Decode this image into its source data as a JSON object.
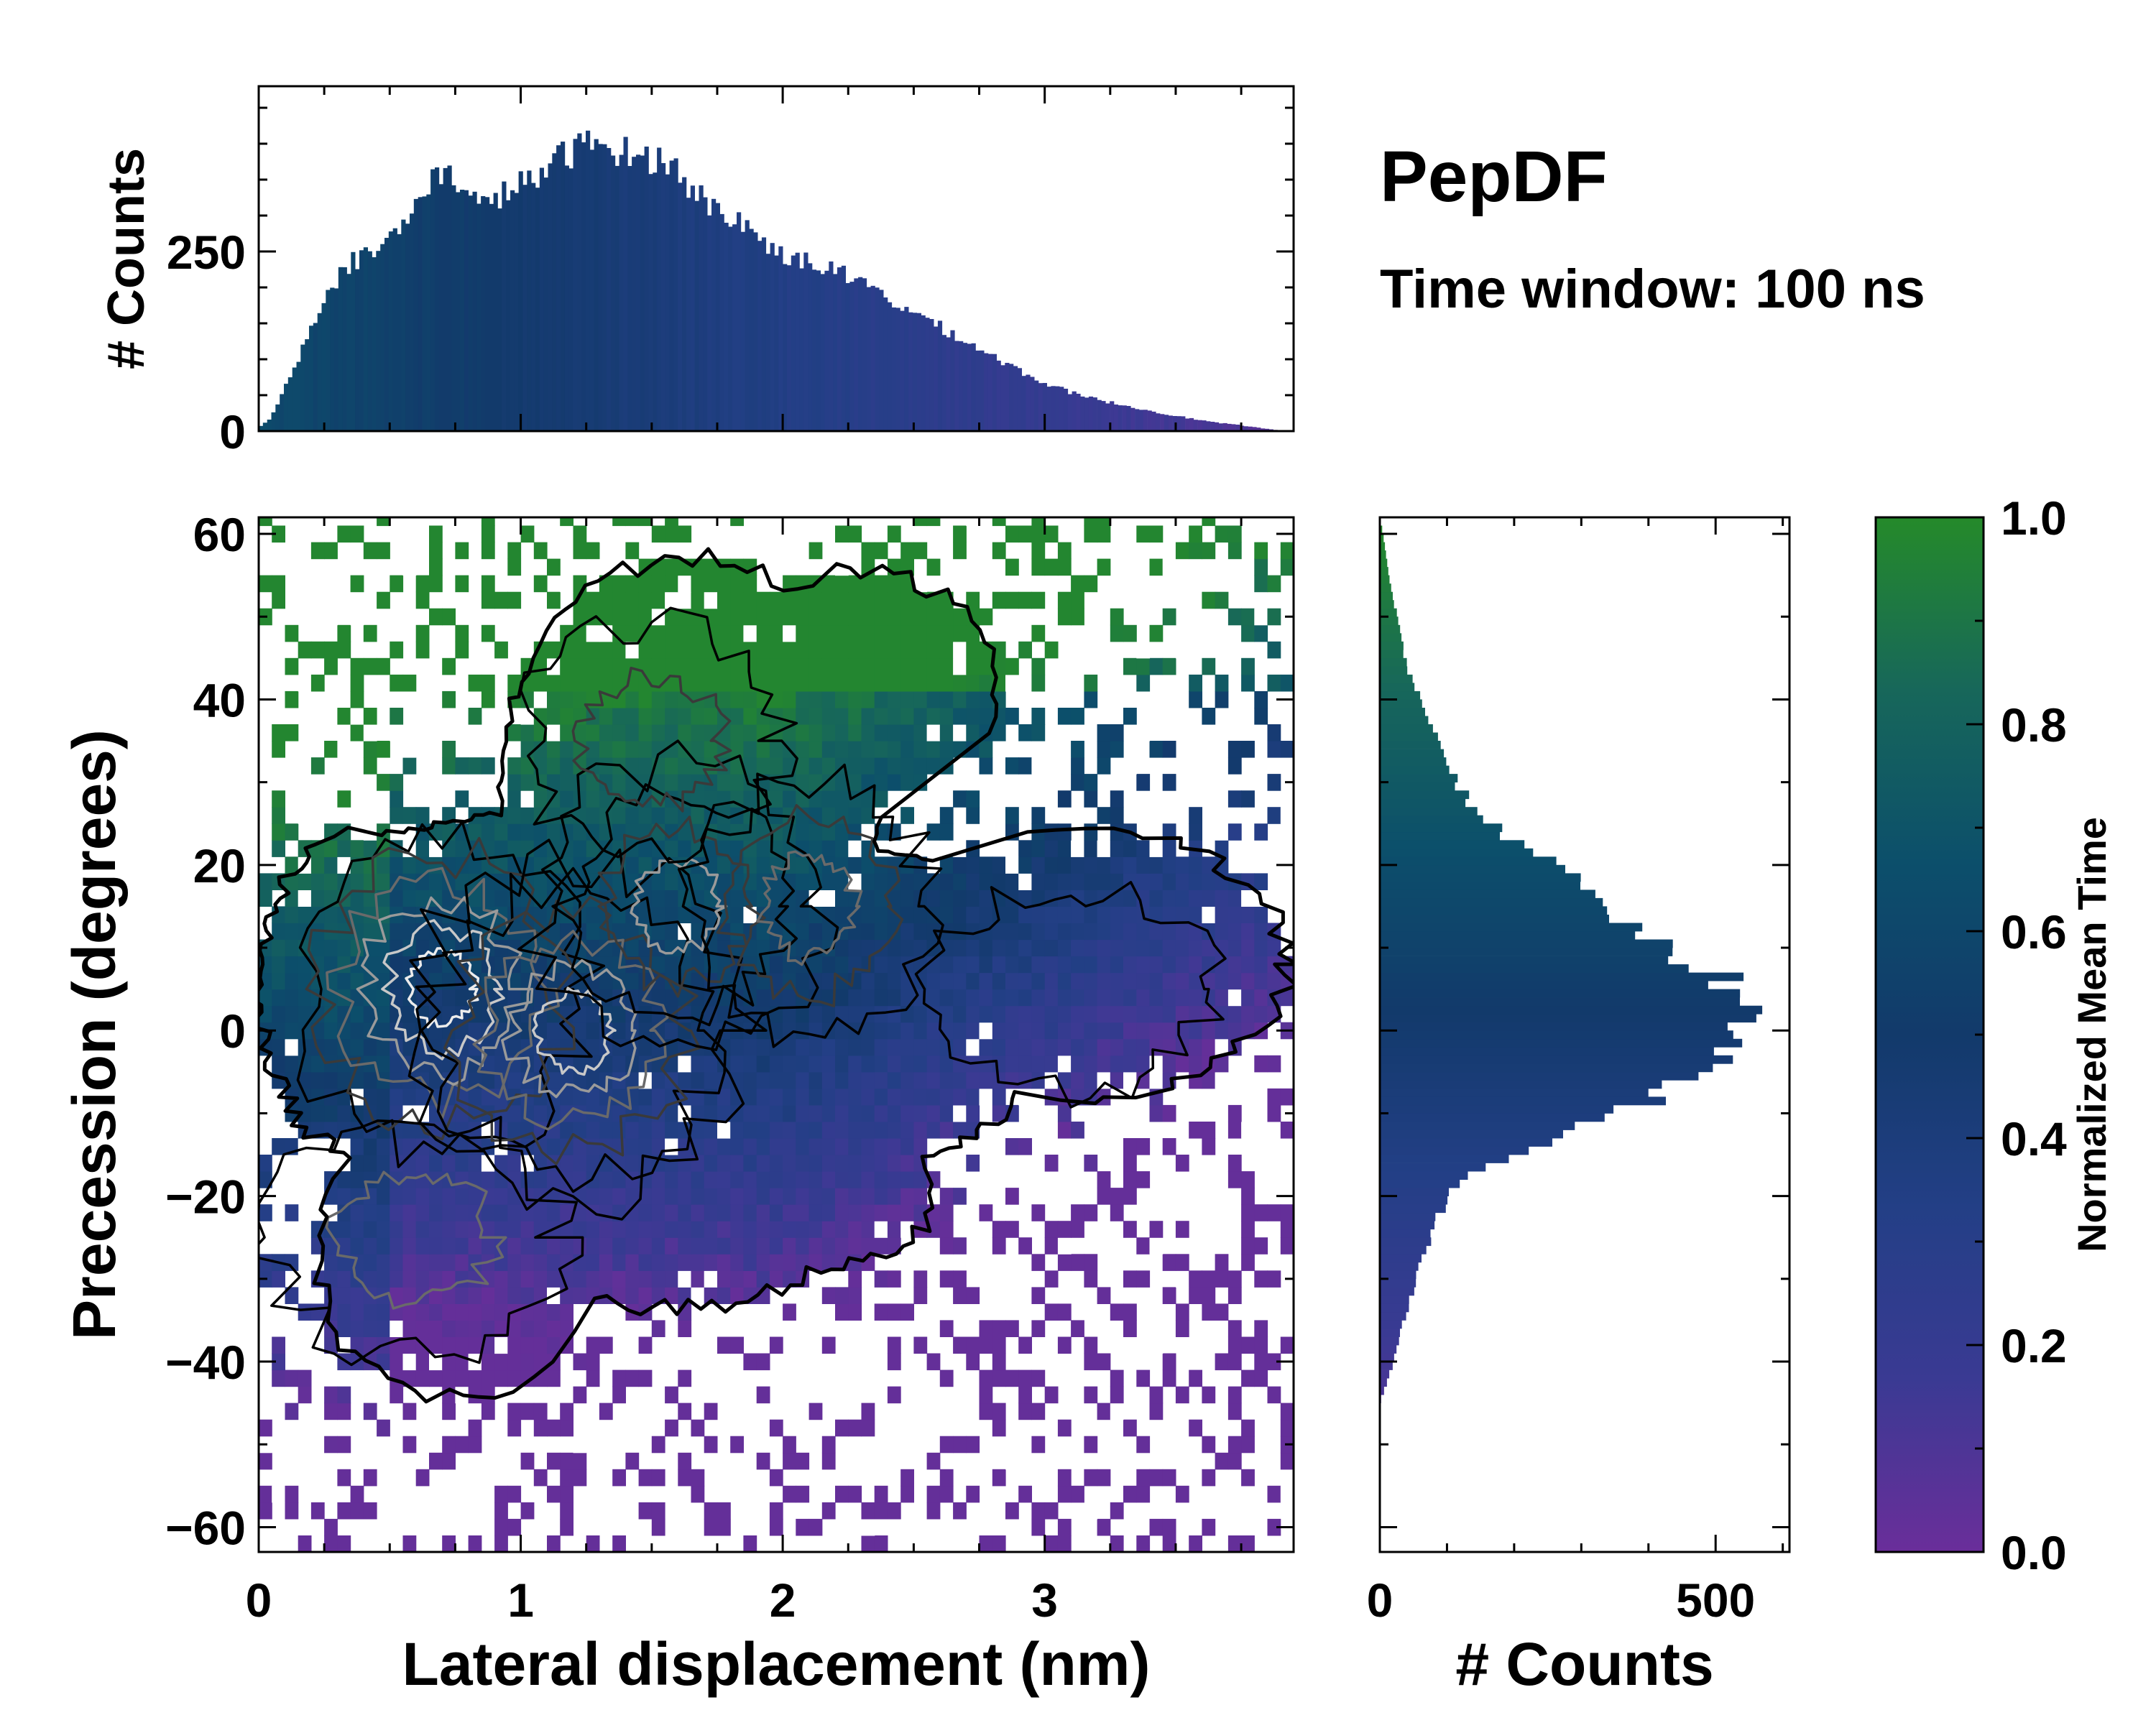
{
  "title": "PepDF",
  "subtitle": "Time window: 100 ns",
  "colors": {
    "colormap": [
      "#6a2e9a",
      "#3a3a93",
      "#233f86",
      "#123a6b",
      "#0c4f6b",
      "#17675a",
      "#258a2a"
    ],
    "contour_levels": [
      "#000000",
      "#3a3a3a",
      "#6a6a6a",
      "#9a9a9a",
      "#c8c8c8",
      "#ececec"
    ],
    "empty_cell": "#ffffff"
  },
  "chart_data": [
    {
      "id": "joint",
      "type": "heatmap",
      "description_style": "2D histogram colored by normalized mean time with density contours",
      "xlabel": "Lateral displacement (nm)",
      "ylabel": "Precession (degrees)",
      "xlim": [
        0,
        3.95
      ],
      "ylim": [
        -63,
        62
      ],
      "xticks": [
        0,
        1,
        2,
        3
      ],
      "xtick_labels": [
        "0",
        "1",
        "2",
        "3"
      ],
      "yticks": [
        -60,
        -40,
        -20,
        0,
        20,
        40,
        60
      ],
      "ytick_labels": [
        "−60",
        "−40",
        "−20",
        "0",
        "20",
        "40",
        "60"
      ],
      "density_peaks": [
        {
          "x": 0.7,
          "y": 5,
          "amp": 1.0,
          "sx": 0.35,
          "sy": 12
        },
        {
          "x": 1.2,
          "y": 0,
          "amp": 0.95,
          "sx": 0.4,
          "sy": 13
        },
        {
          "x": 1.6,
          "y": 15,
          "amp": 0.6,
          "sx": 0.35,
          "sy": 11
        },
        {
          "x": 2.1,
          "y": 15,
          "amp": 0.55,
          "sx": 0.3,
          "sy": 10
        },
        {
          "x": 1.5,
          "y": 35,
          "amp": 0.3,
          "sx": 0.35,
          "sy": 10
        },
        {
          "x": 0.6,
          "y": -25,
          "amp": 0.4,
          "sx": 0.4,
          "sy": 10
        },
        {
          "x": 3.1,
          "y": 5,
          "amp": 0.2,
          "sx": 0.45,
          "sy": 10
        }
      ]
    },
    {
      "id": "x_marginal",
      "type": "bar",
      "ylabel": "# Counts",
      "xlim": [
        0,
        3.95
      ],
      "ylim": [
        0,
        480
      ],
      "yticks": [
        0,
        250
      ],
      "ytick_labels": [
        "0",
        "250"
      ],
      "profile": [
        {
          "x": 0.0,
          "count": 5
        },
        {
          "x": 0.05,
          "count": 20
        },
        {
          "x": 0.15,
          "count": 100
        },
        {
          "x": 0.25,
          "count": 190
        },
        {
          "x": 0.35,
          "count": 235
        },
        {
          "x": 0.45,
          "count": 250
        },
        {
          "x": 0.55,
          "count": 285
        },
        {
          "x": 0.65,
          "count": 350
        },
        {
          "x": 0.75,
          "count": 355
        },
        {
          "x": 0.85,
          "count": 310
        },
        {
          "x": 0.95,
          "count": 335
        },
        {
          "x": 1.05,
          "count": 350
        },
        {
          "x": 1.15,
          "count": 380
        },
        {
          "x": 1.25,
          "count": 400
        },
        {
          "x": 1.35,
          "count": 395
        },
        {
          "x": 1.45,
          "count": 380
        },
        {
          "x": 1.55,
          "count": 380
        },
        {
          "x": 1.65,
          "count": 340
        },
        {
          "x": 1.75,
          "count": 305
        },
        {
          "x": 1.85,
          "count": 290
        },
        {
          "x": 1.95,
          "count": 255
        },
        {
          "x": 2.05,
          "count": 240
        },
        {
          "x": 2.15,
          "count": 230
        },
        {
          "x": 2.25,
          "count": 215
        },
        {
          "x": 2.35,
          "count": 195
        },
        {
          "x": 2.45,
          "count": 175
        },
        {
          "x": 2.55,
          "count": 155
        },
        {
          "x": 2.65,
          "count": 135
        },
        {
          "x": 2.75,
          "count": 115
        },
        {
          "x": 2.85,
          "count": 95
        },
        {
          "x": 2.95,
          "count": 75
        },
        {
          "x": 3.05,
          "count": 60
        },
        {
          "x": 3.15,
          "count": 48
        },
        {
          "x": 3.25,
          "count": 40
        },
        {
          "x": 3.35,
          "count": 32
        },
        {
          "x": 3.45,
          "count": 25
        },
        {
          "x": 3.55,
          "count": 18
        },
        {
          "x": 3.65,
          "count": 12
        },
        {
          "x": 3.75,
          "count": 8
        },
        {
          "x": 3.85,
          "count": 3
        },
        {
          "x": 3.92,
          "count": 0
        }
      ]
    },
    {
      "id": "y_marginal",
      "type": "bar",
      "orientation": "horizontal",
      "xlabel": "# Counts",
      "xlim": [
        0,
        610
      ],
      "xticks": [
        0,
        500
      ],
      "xtick_labels": [
        "0",
        "500"
      ],
      "ylim": [
        -63,
        62
      ],
      "profile": [
        {
          "y": -45,
          "count": 0
        },
        {
          "y": -43,
          "count": 8
        },
        {
          "y": -40,
          "count": 20
        },
        {
          "y": -35,
          "count": 35
        },
        {
          "y": -30,
          "count": 55
        },
        {
          "y": -25,
          "count": 75
        },
        {
          "y": -20,
          "count": 100
        },
        {
          "y": -17,
          "count": 140
        },
        {
          "y": -15,
          "count": 200
        },
        {
          "y": -12,
          "count": 290
        },
        {
          "y": -8,
          "count": 420
        },
        {
          "y": -4,
          "count": 500
        },
        {
          "y": 0,
          "count": 540
        },
        {
          "y": 3,
          "count": 545
        },
        {
          "y": 6,
          "count": 520
        },
        {
          "y": 9,
          "count": 440
        },
        {
          "y": 13,
          "count": 360
        },
        {
          "y": 17,
          "count": 310
        },
        {
          "y": 20,
          "count": 270
        },
        {
          "y": 23,
          "count": 190
        },
        {
          "y": 27,
          "count": 140
        },
        {
          "y": 32,
          "count": 100
        },
        {
          "y": 38,
          "count": 70
        },
        {
          "y": 43,
          "count": 45
        },
        {
          "y": 48,
          "count": 30
        },
        {
          "y": 52,
          "count": 20
        },
        {
          "y": 56,
          "count": 12
        },
        {
          "y": 60,
          "count": 5
        },
        {
          "y": 62,
          "count": 0
        }
      ]
    },
    {
      "id": "colorbar",
      "type": "colorbar",
      "label": "Normalized Mean Time",
      "range": [
        0.0,
        1.0
      ],
      "ticks": [
        0.0,
        0.2,
        0.4,
        0.6,
        0.8,
        1.0
      ],
      "tick_labels": [
        "0.0",
        "0.2",
        "0.4",
        "0.6",
        "0.8",
        "1.0"
      ]
    }
  ]
}
